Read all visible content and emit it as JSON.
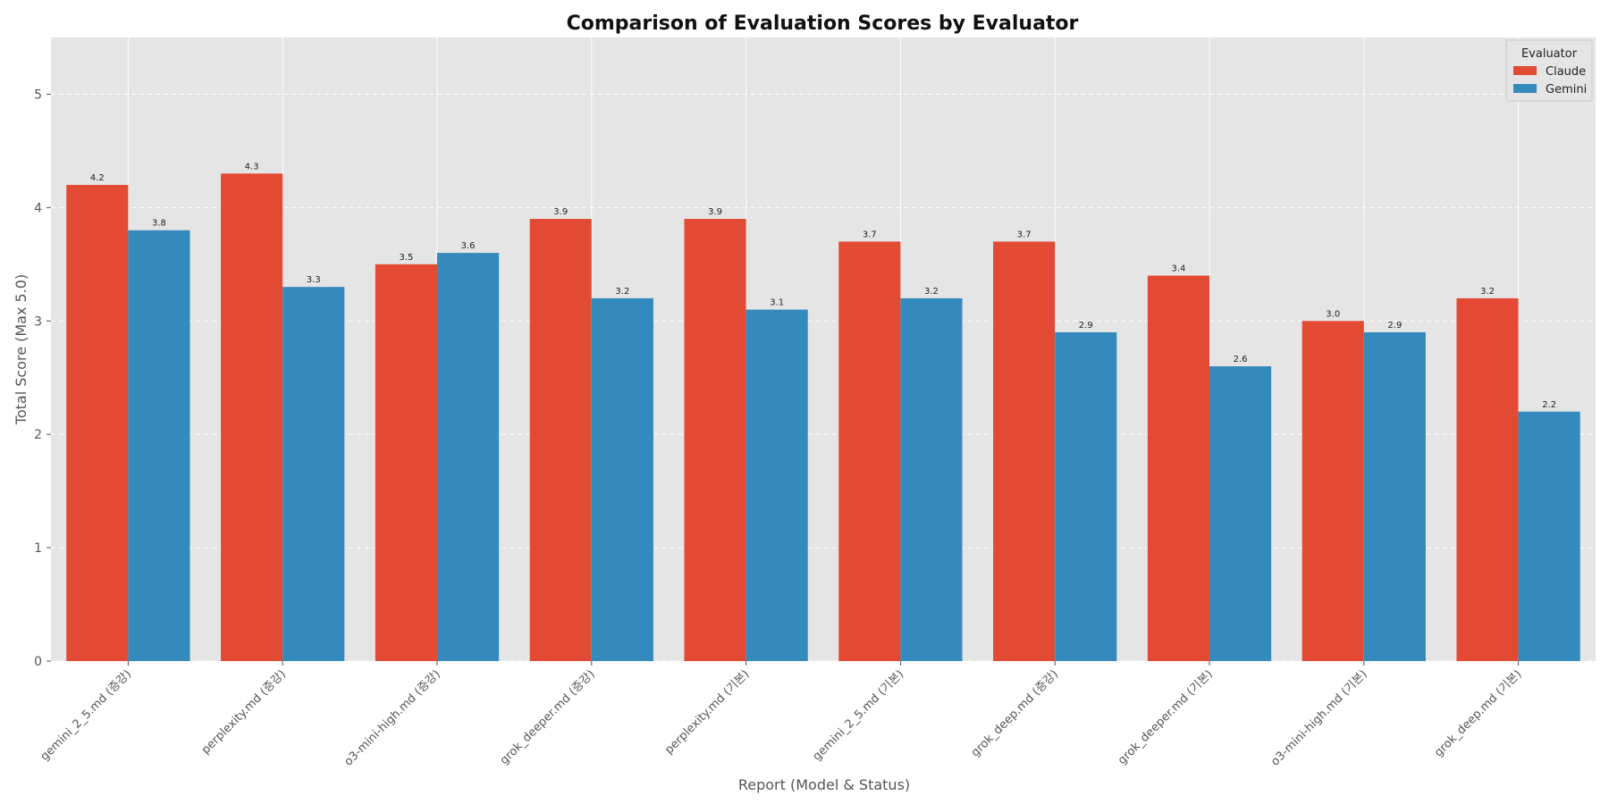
{
  "chart_data": {
    "type": "bar",
    "title": "Comparison of Evaluation Scores by Evaluator",
    "xlabel": "Report (Model & Status)",
    "ylabel": "Total Score (Max 5.0)",
    "ylim": [
      0,
      5.5
    ],
    "yticks": [
      0,
      1,
      2,
      3,
      4,
      5
    ],
    "grid": true,
    "legend": {
      "title": "Evaluator",
      "placement": "top-right"
    },
    "categories": [
      "gemini_2_5.md (증강)",
      "perplexity.md (증강)",
      "o3-mini-high.md (증강)",
      "grok_deeper.md (증강)",
      "perplexity.md (기본)",
      "gemini_2_5.md (기본)",
      "grok_deep.md (증강)",
      "grok_deeper.md (기본)",
      "o3-mini-high.md (기본)",
      "grok_deep.md (기본)"
    ],
    "series": [
      {
        "name": "Claude",
        "color": "#E24A33",
        "values": [
          4.2,
          4.3,
          3.5,
          3.9,
          3.9,
          3.7,
          3.7,
          3.4,
          3.0,
          3.2
        ],
        "labels": [
          "4.2",
          "4.3",
          "3.5",
          "3.9",
          "3.9",
          "3.7",
          "3.7",
          "3.4",
          "3.0",
          "3.2"
        ]
      },
      {
        "name": "Gemini",
        "color": "#348ABD",
        "values": [
          3.8,
          3.3,
          3.6,
          3.2,
          3.1,
          3.2,
          2.9,
          2.6,
          2.9,
          2.2
        ],
        "labels": [
          "3.8",
          "3.3",
          "3.6",
          "3.2",
          "3.1",
          "3.2",
          "2.9",
          "2.6",
          "2.9",
          "2.2"
        ]
      }
    ]
  }
}
